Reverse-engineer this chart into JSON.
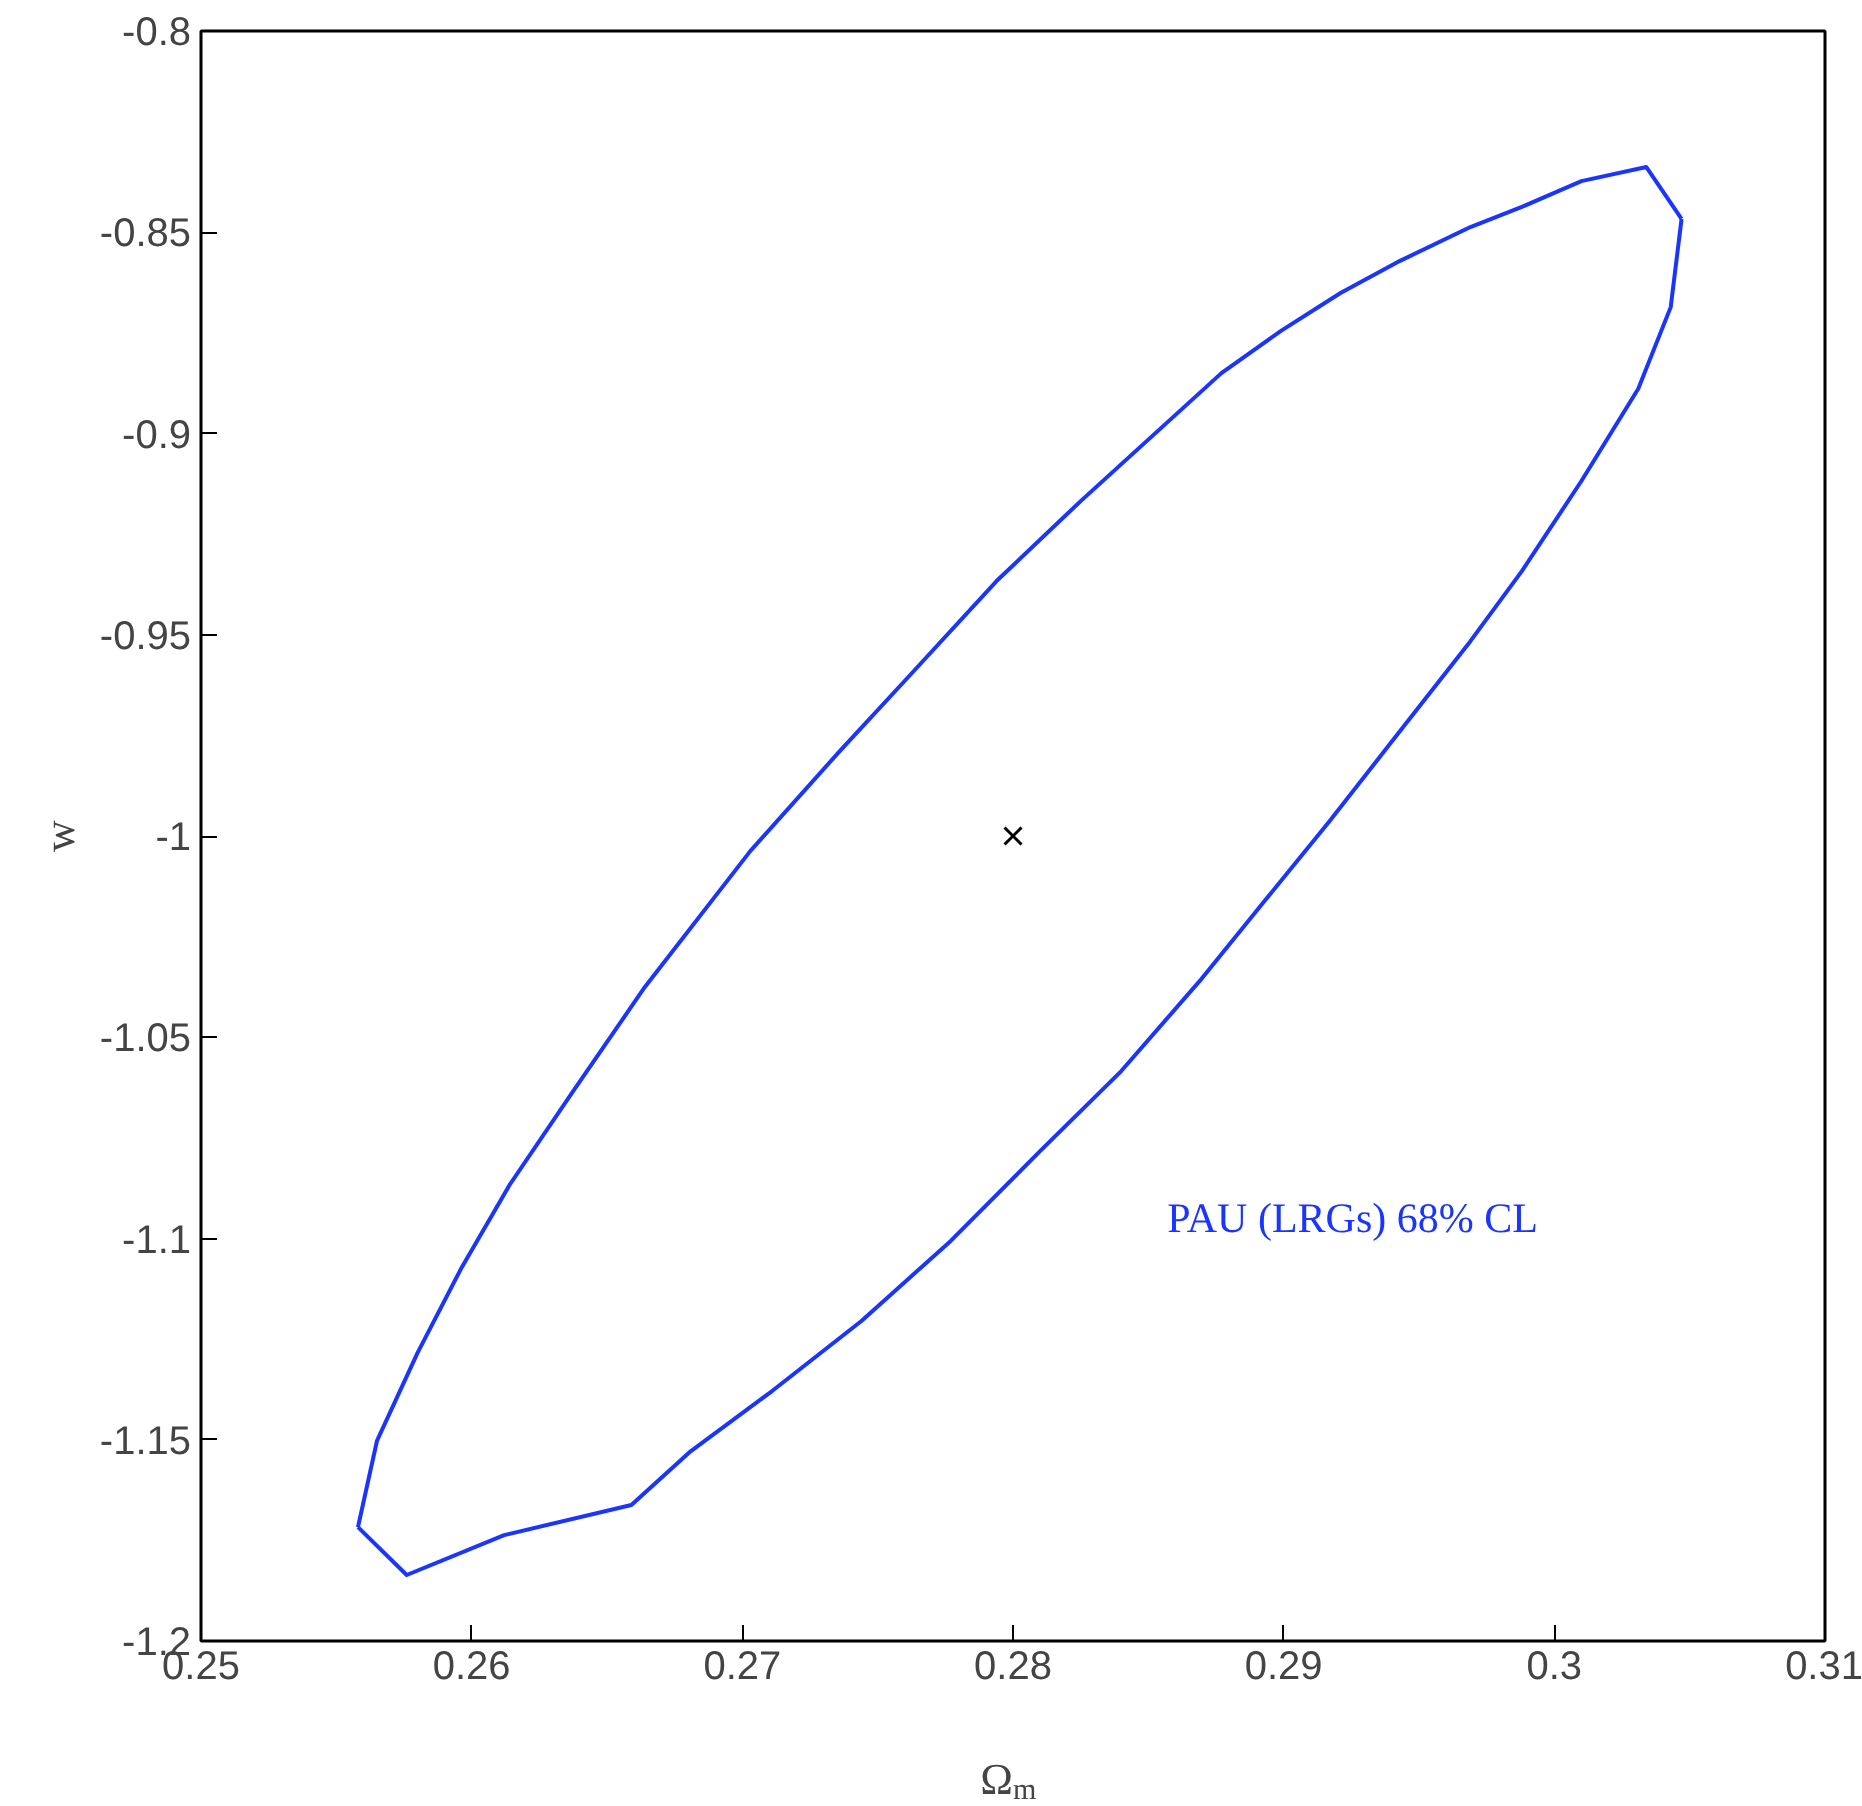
{
  "chart_data": {
    "type": "line",
    "xlabel": "Ω$_{m}$",
    "ylabel": "w",
    "xlim": [
      0.25,
      0.31
    ],
    "xticks": [
      0.25,
      0.26,
      0.27,
      0.28,
      0.29,
      0.3,
      0.31
    ],
    "ylim": [
      -1.2,
      -0.8
    ],
    "yticks": [
      -1.2,
      -1.15,
      -1.1,
      -1.05,
      -1,
      -0.95,
      -0.9,
      -0.85,
      -0.8
    ],
    "series": [
      {
        "color": "#1a35ff",
        "line_style": "solid",
        "x": [
          0.2558,
          0.2565,
          0.258,
          0.2596,
          0.2614,
          0.2637,
          0.2664,
          0.2703,
          0.2736,
          0.2762,
          0.2794,
          0.2825,
          0.2877,
          0.2899,
          0.2921,
          0.2943,
          0.2969,
          0.2988,
          0.301,
          0.3034,
          0.3047
        ],
        "values": [
          -1.1717,
          -1.1503,
          -1.1284,
          -1.1076,
          -1.0867,
          -1.0639,
          -1.0375,
          -1.0037,
          -0.9789,
          -0.96,
          -0.9366,
          -0.9168,
          -0.885,
          -0.8745,
          -0.8651,
          -0.8571,
          -0.8487,
          -0.8437,
          -0.8373,
          -0.8338,
          -0.8467
        ]
      },
      {
        "color": "#1a35ff",
        "line_style": "solid",
        "x": [
          0.2558,
          0.2576,
          0.2612,
          0.2659,
          0.2681,
          0.2711,
          0.2744,
          0.2777,
          0.281,
          0.284,
          0.2869,
          0.2893,
          0.2917,
          0.2943,
          0.2969,
          0.2988,
          0.301,
          0.3031,
          0.3043,
          0.3047
        ],
        "values": [
          -1.1717,
          -1.1836,
          -1.1737,
          -1.1662,
          -1.1528,
          -1.1379,
          -1.1205,
          -1.1006,
          -1.0783,
          -1.0584,
          -1.036,
          -1.0161,
          -0.9963,
          -0.9739,
          -0.9516,
          -0.9342,
          -0.9118,
          -0.8889,
          -0.8686,
          -0.8467
        ]
      },
      {
        "type": "scatter",
        "color": "#000000",
        "marker": "cross",
        "x": [
          0.28
        ],
        "values": [
          -1.0
        ]
      }
    ],
    "annotations": [
      "PAU (LRGs)  68% CL"
    ]
  }
}
